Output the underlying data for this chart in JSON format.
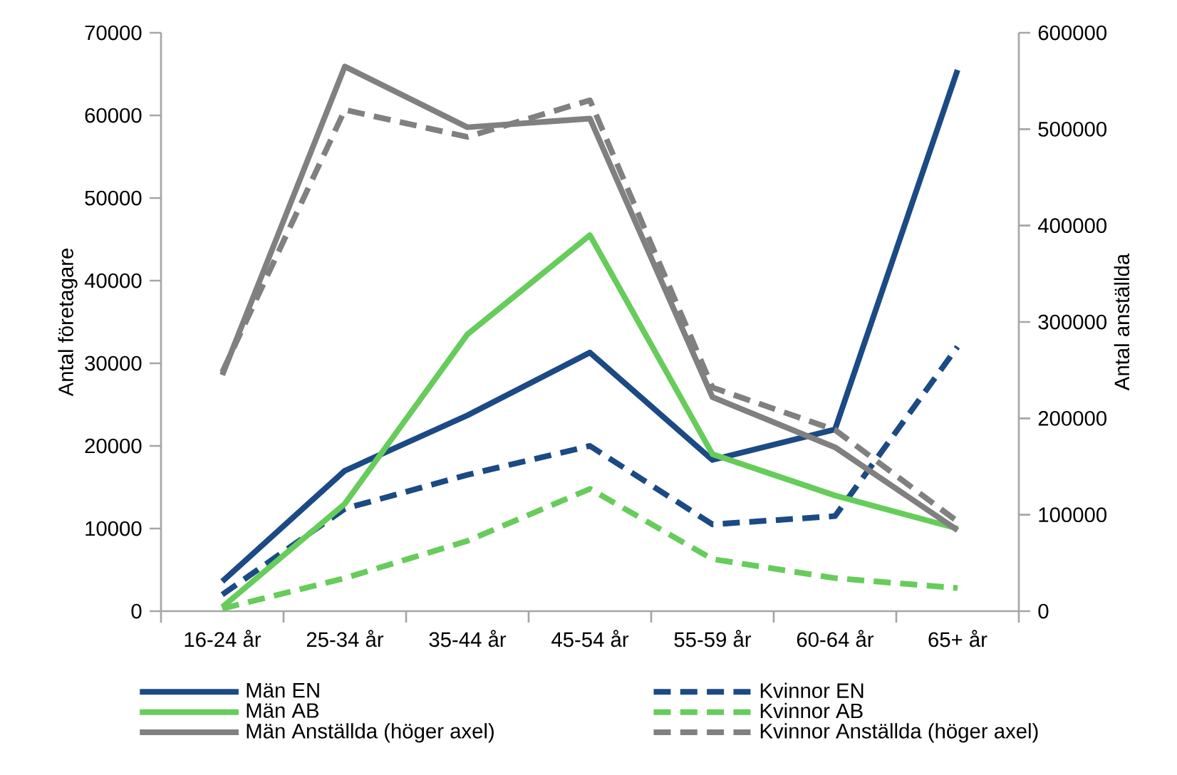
{
  "chart_data": {
    "type": "line",
    "ylabel": "Antal företagare",
    "y2label": "Antal anställda",
    "categories": [
      "16-24 år",
      "25-34 år",
      "35-44 år",
      "45-54 år",
      "55-59 år",
      "60-64 år",
      "65+ år"
    ],
    "ylim": [
      0,
      70000
    ],
    "yticks": [
      0,
      10000,
      20000,
      30000,
      40000,
      50000,
      60000,
      70000
    ],
    "y2lim": [
      0,
      600000
    ],
    "y2ticks": [
      0,
      100000,
      200000,
      300000,
      400000,
      500000,
      600000
    ],
    "grid": false,
    "legend": "bottom",
    "marker": "none",
    "series": [
      {
        "name": "Män EN",
        "color": "#1b4a84",
        "line_style": "solid",
        "values": [
          3600,
          17000,
          23700,
          31300,
          18300,
          22000,
          65500
        ]
      },
      {
        "name": "Kvinnor EN",
        "color": "#1b4a84",
        "line_style": "dashed",
        "values": [
          2000,
          12400,
          16500,
          20000,
          10500,
          11500,
          32000
        ]
      },
      {
        "name": "Män AB",
        "color": "#66cc5a",
        "line_style": "solid",
        "values": [
          500,
          13000,
          33500,
          45500,
          19000,
          14000,
          10000
        ]
      },
      {
        "name": "Kvinnor AB",
        "color": "#66cc5a",
        "line_style": "dashed",
        "values": [
          300,
          4000,
          8500,
          14800,
          6300,
          4000,
          2800
        ]
      },
      {
        "name": "Män Anställda (höger axel)",
        "color": "#808080",
        "line_style": "solid",
        "axis": "y2",
        "values": [
          245000,
          565000,
          502000,
          511000,
          222000,
          170000,
          84000
        ]
      },
      {
        "name": "Kvinnor Anställda (höger axel)",
        "color": "#808080",
        "line_style": "dashed",
        "axis": "y2",
        "values": [
          248000,
          520000,
          492000,
          530000,
          232000,
          188000,
          93000
        ]
      }
    ]
  }
}
